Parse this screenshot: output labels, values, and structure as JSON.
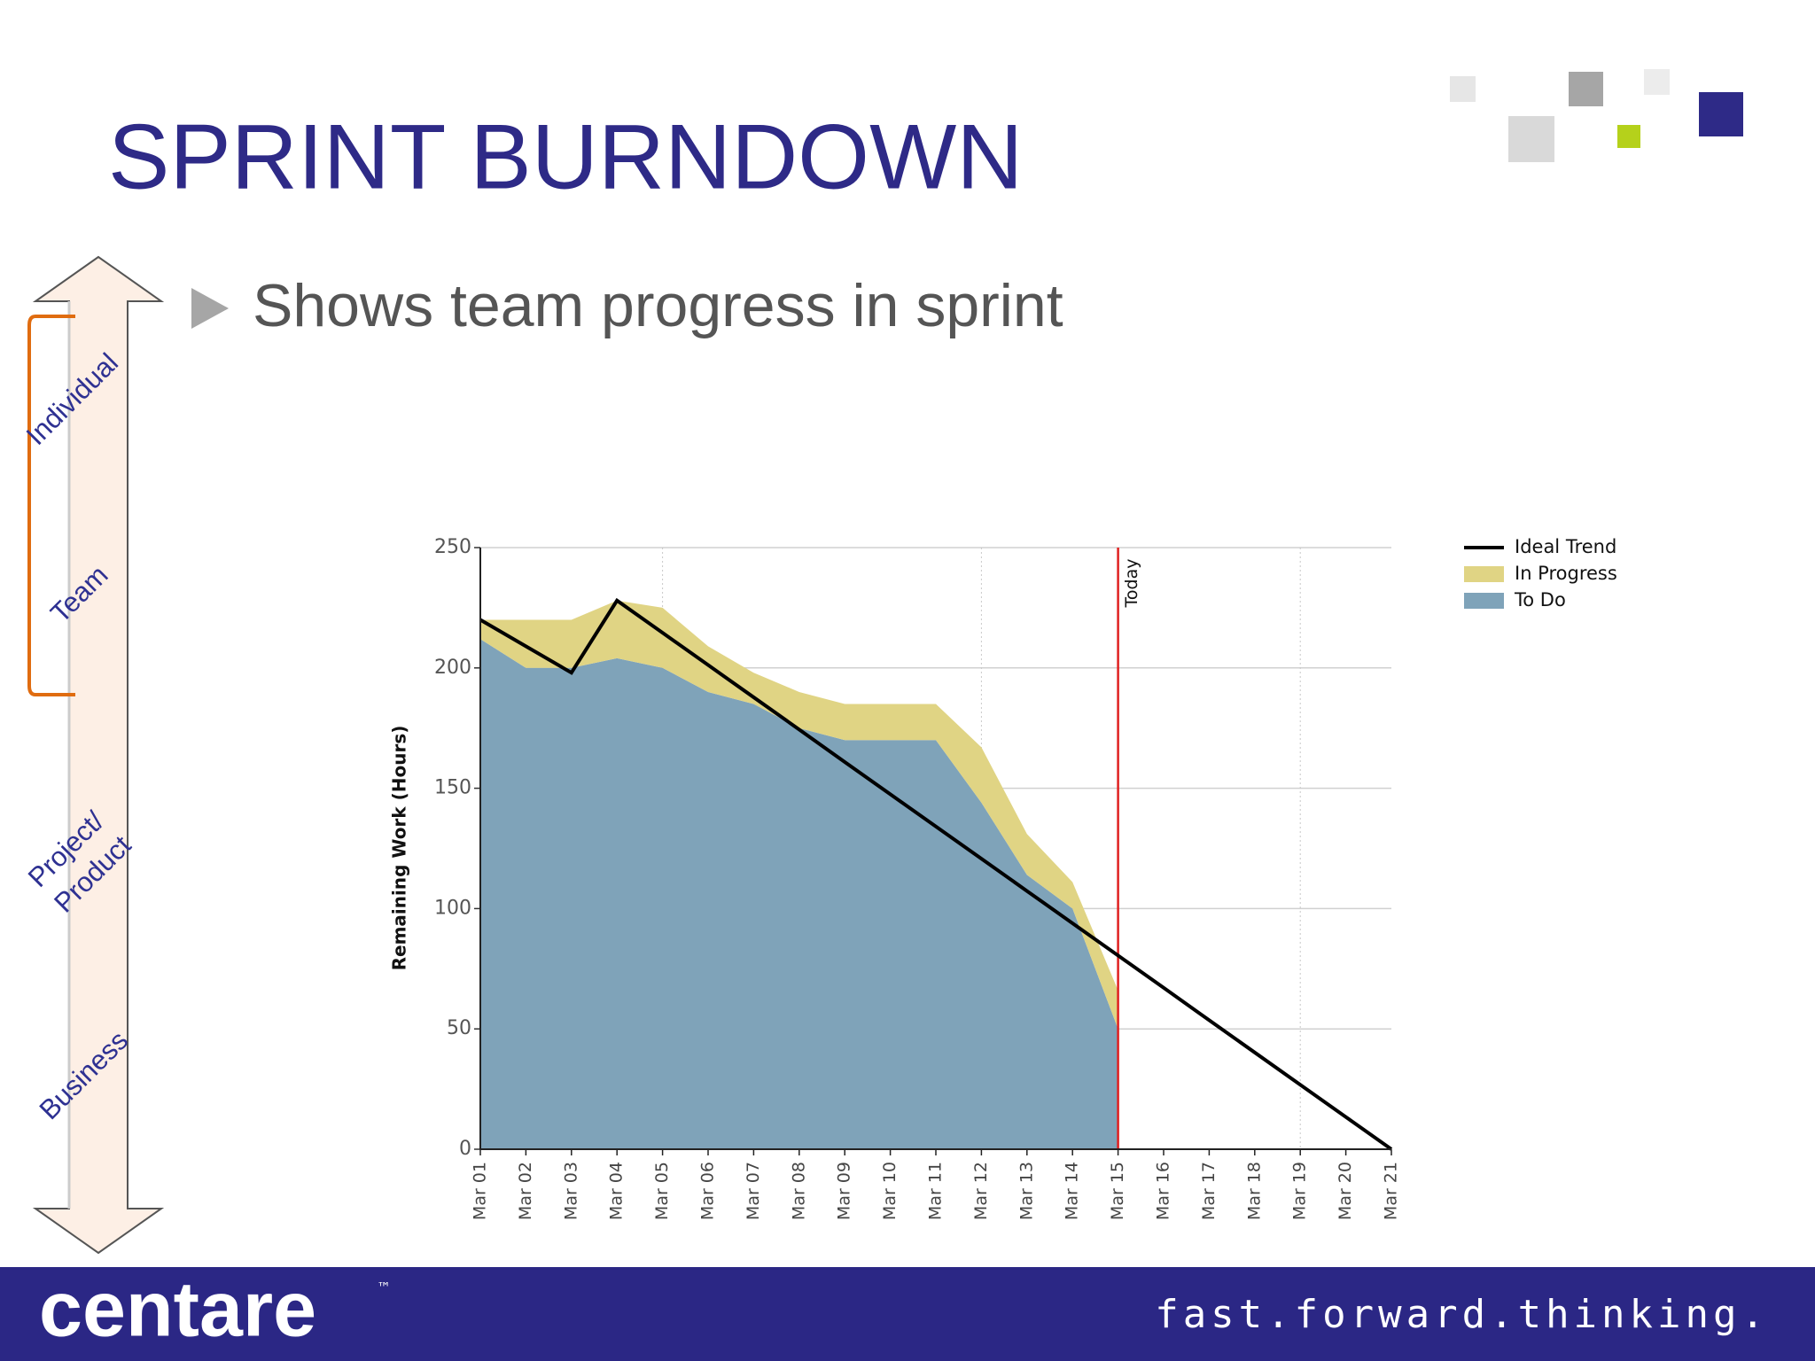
{
  "slide": {
    "title": "SPRINT BURNDOWN",
    "bullet": "Shows team progress in sprint",
    "scale_labels": [
      "Individual",
      "Team",
      "Project/",
      "Product",
      "Business"
    ],
    "logo": "centare",
    "trademark": "™",
    "tagline": "fast.forward.thinking."
  },
  "chart_data": {
    "type": "area",
    "stacked": true,
    "y_label": "Remaining Work (Hours)",
    "categories": [
      "Mar 01",
      "Mar 02",
      "Mar 03",
      "Mar 04",
      "Mar 05",
      "Mar 06",
      "Mar 07",
      "Mar 08",
      "Mar 09",
      "Mar 10",
      "Mar 11",
      "Mar 12",
      "Mar 13",
      "Mar 14",
      "Mar 15",
      "Mar 16",
      "Mar 17",
      "Mar 18",
      "Mar 19",
      "Mar 20",
      "Mar 21"
    ],
    "series": [
      {
        "name": "Ideal Trend",
        "type": "line",
        "color": "#000000",
        "values": [
          220,
          209,
          198,
          228,
          214.6,
          201.2,
          187.8,
          174.4,
          160.9,
          147.5,
          134.1,
          120.7,
          107.3,
          93.9,
          80.5,
          67.1,
          53.6,
          40.2,
          26.8,
          13.4,
          0
        ]
      },
      {
        "name": "In Progress",
        "type": "area",
        "color": "#e0d484",
        "values": [
          8,
          20,
          20,
          24,
          25,
          19,
          13,
          15,
          15,
          15,
          15,
          23,
          17,
          11,
          16,
          null,
          null,
          null,
          null,
          null,
          null
        ]
      },
      {
        "name": "To Do",
        "type": "area",
        "color": "#7fa3b9",
        "values": [
          212,
          200,
          200,
          204,
          200,
          190,
          185,
          175,
          170,
          170,
          170,
          144,
          114,
          100,
          50,
          null,
          null,
          null,
          null,
          null,
          null
        ]
      }
    ],
    "ylim": [
      0,
      250
    ],
    "yticks": [
      0,
      50,
      100,
      150,
      200,
      250
    ],
    "grid": true,
    "marker": {
      "category": "Mar 15",
      "label": "Today",
      "color": "#e02020"
    },
    "legend": "upper right"
  }
}
